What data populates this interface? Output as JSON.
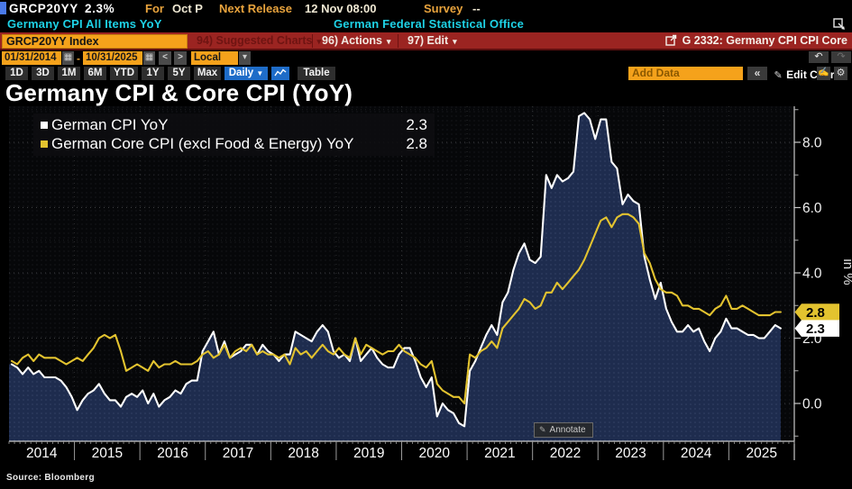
{
  "topbar": {
    "ticker": "GRCP20YY",
    "ticker_value": "2.3%",
    "for_label": "For",
    "for_value": "Oct P",
    "release_label": "Next Release",
    "release_value": "12 Nov 08:00",
    "survey_label": "Survey",
    "survey_value": "--",
    "security_name": "Germany CPI All Items YoY",
    "source_name": "German Federal Statistical Office"
  },
  "menubar": {
    "security_field": "GRCP20YY Index",
    "suggested_charts": "94) Suggested Charts",
    "actions": "96) Actions",
    "edit": "97) Edit",
    "chart_ref": "G 2332: Germany CPI CPI Core"
  },
  "controls": {
    "date_from": "01/31/2014",
    "date_to": "10/31/2025",
    "range_sep": "-",
    "prev": "<",
    "next": ">",
    "currency": "Local CCY",
    "periods": [
      "1D",
      "3D",
      "1M",
      "6M",
      "YTD",
      "1Y",
      "5Y",
      "Max"
    ],
    "frequency": "Daily",
    "table": "Table",
    "add_data": "Add Data",
    "collapse": "«",
    "edit_chart": "Edit Chart",
    "undo": "↶",
    "redo": "↷"
  },
  "chart": {
    "title": "Germany CPI & Core CPI (YoY)",
    "ylabel": "in %",
    "annotate": "Annotate",
    "source": "Source: Bloomberg",
    "legend": [
      {
        "label": "German CPI YoY",
        "value": "2.3",
        "color": "#ffffff"
      },
      {
        "label": "German Core CPI (excl Food & Energy) YoY",
        "value": "2.8",
        "color": "#e3c32f"
      }
    ],
    "last_values": [
      {
        "value": "2.8",
        "bg": "#e3c32f"
      },
      {
        "value": "2.3",
        "bg": "#ffffff"
      }
    ]
  },
  "chart_data": {
    "type": "line",
    "frequency": "monthly",
    "x_start": "2014-01",
    "x_end": "2025-10",
    "x_years": [
      2014,
      2015,
      2016,
      2017,
      2018,
      2019,
      2020,
      2021,
      2022,
      2023,
      2024,
      2025
    ],
    "ylim": [
      -1.15,
      9.1
    ],
    "yticks": [
      0,
      2,
      4,
      6,
      8
    ],
    "ytick_labels": [
      "0.0",
      "2.0",
      "4.0",
      "6.0",
      "8.0"
    ],
    "ylabel": "in %",
    "grid": "dotted",
    "legend_position": "top-left",
    "series": [
      {
        "name": "German CPI YoY",
        "color": "#ffffff",
        "area_fill": "#1e2c4e",
        "last": 2.3,
        "values": [
          1.2,
          1.1,
          0.9,
          1.1,
          0.9,
          1.0,
          0.8,
          0.8,
          0.8,
          0.7,
          0.5,
          0.2,
          -0.2,
          0.1,
          0.3,
          0.4,
          0.6,
          0.3,
          0.1,
          0.1,
          -0.1,
          0.2,
          0.3,
          0.2,
          0.4,
          0.0,
          0.3,
          -0.1,
          0.1,
          0.2,
          0.4,
          0.3,
          0.6,
          0.7,
          0.7,
          1.6,
          1.9,
          2.2,
          1.5,
          1.9,
          1.4,
          1.5,
          1.6,
          1.8,
          1.8,
          1.5,
          1.8,
          1.6,
          1.5,
          1.3,
          1.5,
          1.5,
          2.2,
          2.1,
          2.0,
          1.9,
          2.2,
          2.4,
          2.2,
          1.6,
          1.4,
          1.5,
          1.3,
          2.0,
          1.3,
          1.5,
          1.7,
          1.4,
          1.2,
          1.1,
          1.1,
          1.5,
          1.7,
          1.7,
          1.3,
          0.8,
          0.5,
          0.8,
          -0.4,
          0.0,
          -0.2,
          -0.3,
          -0.6,
          -0.7,
          1.0,
          1.3,
          1.7,
          2.1,
          2.4,
          2.1,
          3.1,
          3.4,
          4.1,
          4.6,
          4.9,
          4.4,
          4.3,
          4.5,
          7.0,
          6.6,
          7.0,
          6.8,
          6.9,
          7.1,
          8.8,
          8.9,
          8.7,
          8.1,
          8.7,
          8.7,
          7.4,
          7.2,
          6.1,
          6.4,
          6.2,
          6.1,
          4.5,
          3.8,
          3.2,
          3.7,
          2.9,
          2.5,
          2.2,
          2.2,
          2.4,
          2.2,
          2.3,
          1.9,
          1.6,
          2.0,
          2.2,
          2.6,
          2.3,
          2.3,
          2.2,
          2.1,
          2.1,
          2.0,
          2.0,
          2.2,
          2.4,
          2.3
        ]
      },
      {
        "name": "German Core CPI (excl Food & Energy) YoY",
        "color": "#e3c32f",
        "last": 2.8,
        "values": [
          1.3,
          1.2,
          1.4,
          1.5,
          1.3,
          1.5,
          1.4,
          1.4,
          1.4,
          1.3,
          1.2,
          1.3,
          1.4,
          1.3,
          1.5,
          1.7,
          2.0,
          2.1,
          2.0,
          2.1,
          1.6,
          1.0,
          1.1,
          1.2,
          1.1,
          1.0,
          1.3,
          1.1,
          1.2,
          1.2,
          1.3,
          1.2,
          1.2,
          1.2,
          1.3,
          1.5,
          1.6,
          1.4,
          1.5,
          1.8,
          1.4,
          1.6,
          1.7,
          1.6,
          1.8,
          1.5,
          1.6,
          1.5,
          1.5,
          1.4,
          1.5,
          1.2,
          1.7,
          1.5,
          1.6,
          1.4,
          1.6,
          1.8,
          1.6,
          1.5,
          1.7,
          1.5,
          1.4,
          2.0,
          1.5,
          1.8,
          1.7,
          1.6,
          1.5,
          1.6,
          1.6,
          1.8,
          1.6,
          1.5,
          1.4,
          1.2,
          1.1,
          1.3,
          0.6,
          0.4,
          0.3,
          0.2,
          0.2,
          0.0,
          1.5,
          1.4,
          1.6,
          1.7,
          1.9,
          1.7,
          2.3,
          2.5,
          2.7,
          2.9,
          3.2,
          3.1,
          2.9,
          3.0,
          3.4,
          3.4,
          3.7,
          3.5,
          3.7,
          3.9,
          4.1,
          4.4,
          4.8,
          5.2,
          5.6,
          5.7,
          5.4,
          5.7,
          5.8,
          5.8,
          5.7,
          5.5,
          4.6,
          4.3,
          3.8,
          3.5,
          3.4,
          3.4,
          3.3,
          3.0,
          3.0,
          2.9,
          2.9,
          2.8,
          2.7,
          2.9,
          3.0,
          3.3,
          2.9,
          2.9,
          3.0,
          2.9,
          2.8,
          2.7,
          2.7,
          2.7,
          2.8,
          2.8
        ]
      }
    ]
  }
}
